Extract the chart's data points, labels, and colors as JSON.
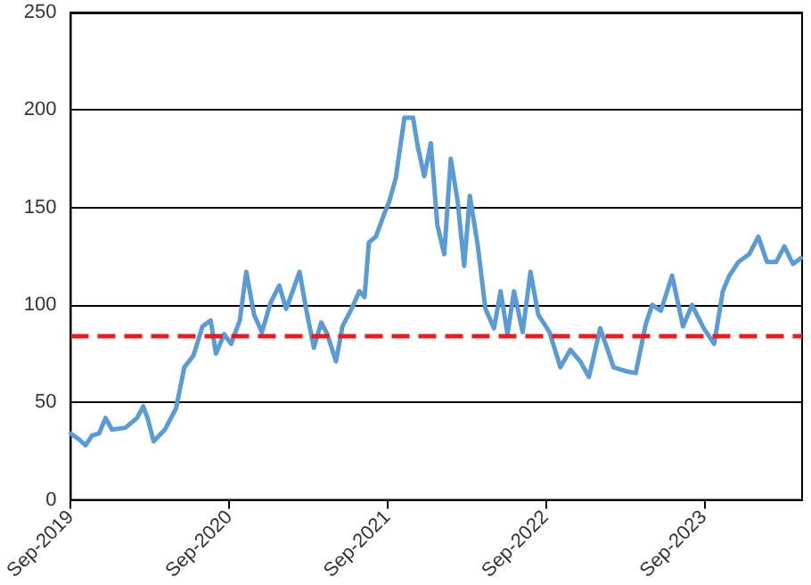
{
  "chart_data": {
    "type": "line",
    "x": [
      "2019-09-01",
      "2019-09-20",
      "2019-10-05",
      "2019-10-20",
      "2019-11-05",
      "2019-11-20",
      "2019-12-05",
      "2020-01-05",
      "2020-02-01",
      "2020-02-15",
      "2020-02-25",
      "2020-03-10",
      "2020-04-05",
      "2020-05-01",
      "2020-05-20",
      "2020-06-10",
      "2020-07-01",
      "2020-07-20",
      "2020-08-01",
      "2020-08-20",
      "2020-09-05",
      "2020-09-25",
      "2020-10-10",
      "2020-10-28",
      "2020-11-15",
      "2020-12-05",
      "2020-12-25",
      "2021-01-10",
      "2021-01-25",
      "2021-02-10",
      "2021-02-25",
      "2021-03-15",
      "2021-04-01",
      "2021-04-15",
      "2021-05-05",
      "2021-05-20",
      "2021-06-10",
      "2021-06-28",
      "2021-07-10",
      "2021-07-20",
      "2021-08-05",
      "2021-08-25",
      "2021-09-05",
      "2021-09-20",
      "2021-10-10",
      "2021-10-30",
      "2021-11-10",
      "2021-11-25",
      "2021-12-10",
      "2021-12-25",
      "2022-01-10",
      "2022-01-25",
      "2022-02-10",
      "2022-02-25",
      "2022-03-10",
      "2022-03-28",
      "2022-04-15",
      "2022-05-05",
      "2022-05-20",
      "2022-06-05",
      "2022-06-20",
      "2022-07-10",
      "2022-07-28",
      "2022-08-15",
      "2022-09-10",
      "2022-10-05",
      "2022-10-28",
      "2022-11-20",
      "2022-12-10",
      "2023-01-05",
      "2023-02-05",
      "2023-03-05",
      "2023-03-28",
      "2023-04-20",
      "2023-05-05",
      "2023-05-25",
      "2023-06-20",
      "2023-07-15",
      "2023-08-05",
      "2023-09-01",
      "2023-09-25",
      "2023-10-15",
      "2023-10-30",
      "2023-11-20",
      "2023-12-15",
      "2024-01-05",
      "2024-01-25",
      "2024-02-15",
      "2024-03-05",
      "2024-03-25",
      "2024-04-12"
    ],
    "values": [
      34,
      31,
      28,
      33,
      34,
      42,
      36,
      37,
      42,
      48,
      42,
      30,
      36,
      47,
      68,
      74,
      89,
      92,
      75,
      85,
      80,
      92,
      117,
      95,
      86,
      101,
      110,
      98,
      107,
      117,
      98,
      78,
      91,
      85,
      71,
      89,
      98,
      107,
      104,
      132,
      135,
      147,
      153,
      165,
      196,
      196,
      181,
      166,
      183,
      141,
      126,
      175,
      153,
      120,
      156,
      131,
      98,
      88,
      107,
      85,
      107,
      86,
      117,
      95,
      86,
      68,
      77,
      71,
      63,
      88,
      68,
      66,
      65,
      90,
      100,
      97,
      115,
      89,
      100,
      88,
      80,
      107,
      115,
      122,
      126,
      135,
      122,
      122,
      130,
      121,
      124
    ],
    "color": "#5b9bd5",
    "line_style": "solid",
    "marker": "none",
    "xlim": [
      "2019-09-01",
      "2024-04-15"
    ],
    "xticks": [
      {
        "value": "2019-09-01",
        "label": "Sep-2019"
      },
      {
        "value": "2020-09-01",
        "label": "Sep-2020"
      },
      {
        "value": "2021-09-01",
        "label": "Sep-2021"
      },
      {
        "value": "2022-09-01",
        "label": "Sep-2022"
      },
      {
        "value": "2023-09-01",
        "label": "Sep-2023"
      }
    ],
    "ylim": [
      0,
      250
    ],
    "yticks": [
      0,
      50,
      100,
      150,
      200,
      250
    ],
    "grid": "y",
    "ref_lines": [
      {
        "axis": "y",
        "value": 84,
        "color": "#e02020",
        "line_style": "dashed"
      }
    ]
  }
}
